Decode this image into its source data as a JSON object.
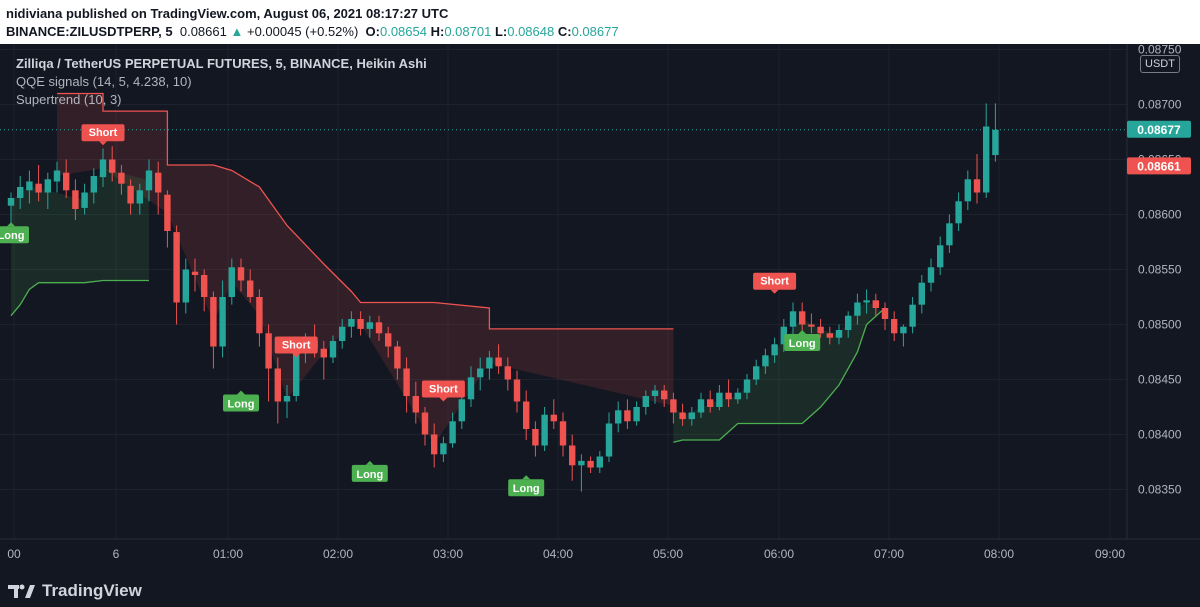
{
  "header": {
    "publisher_line": "nidiviana published on TradingView.com, August 06, 2021 08:17:27 UTC",
    "symbol": "BINANCE:ZILUSDTPERP, 5",
    "price": "0.08661",
    "change": "+0.00045 (+0.52%)",
    "ohlc": {
      "o_label": "O:",
      "o": "0.08654",
      "h_label": "H:",
      "h": "0.08701",
      "l_label": "L:",
      "l": "0.08648",
      "c_label": "C:",
      "c": "0.08677"
    }
  },
  "legend": {
    "title": "Zilliqa / TetherUS PERPETUAL FUTURES, 5, BINANCE, Heikin Ashi",
    "qqe": "QQE signals (14, 5, 4.238, 10)",
    "supertrend": "Supertrend (10, 3)"
  },
  "currency_button": "USDT",
  "brand": "TradingView",
  "colors": {
    "up": "#26a69a",
    "down": "#ef5350",
    "signal_long": "#4caf50",
    "signal_short": "#ef5350",
    "background": "#131722"
  },
  "chart_data": {
    "type": "candlestick",
    "price_axis": {
      "ticks": [
        "0.08750",
        "0.08700",
        "0.08650",
        "0.08600",
        "0.08550",
        "0.08500",
        "0.08450",
        "0.08400",
        "0.08350"
      ],
      "range": [
        0.08305,
        0.08755
      ]
    },
    "time_axis": {
      "ticks": [
        "00",
        "6",
        "01:00",
        "02:00",
        "03:00",
        "04:00",
        "05:00",
        "06:00",
        "07:00",
        "08:00",
        "09:00"
      ]
    },
    "last_price_labels": [
      {
        "value": "0.08677",
        "color": "#26a69a"
      },
      {
        "value": "0.08661",
        "color": "#ef5350"
      }
    ],
    "candles": [
      [
        0.08608,
        0.0862,
        0.0859,
        0.08615
      ],
      [
        0.08615,
        0.08635,
        0.08605,
        0.08625
      ],
      [
        0.08622,
        0.0864,
        0.0861,
        0.0863
      ],
      [
        0.08628,
        0.08645,
        0.08612,
        0.0862
      ],
      [
        0.0862,
        0.08638,
        0.08605,
        0.08632
      ],
      [
        0.0863,
        0.08648,
        0.0862,
        0.0864
      ],
      [
        0.08638,
        0.0865,
        0.08615,
        0.08622
      ],
      [
        0.08622,
        0.08632,
        0.08595,
        0.08605
      ],
      [
        0.08606,
        0.08628,
        0.086,
        0.0862
      ],
      [
        0.0862,
        0.08642,
        0.0861,
        0.08635
      ],
      [
        0.08634,
        0.0866,
        0.08625,
        0.0865
      ],
      [
        0.0865,
        0.08662,
        0.0863,
        0.08638
      ],
      [
        0.08638,
        0.08645,
        0.08618,
        0.08628
      ],
      [
        0.08626,
        0.08632,
        0.086,
        0.0861
      ],
      [
        0.0861,
        0.08628,
        0.086,
        0.08622
      ],
      [
        0.08622,
        0.0865,
        0.08612,
        0.0864
      ],
      [
        0.08638,
        0.08648,
        0.086,
        0.0862
      ],
      [
        0.08618,
        0.08622,
        0.0857,
        0.08585
      ],
      [
        0.08584,
        0.0859,
        0.085,
        0.0852
      ],
      [
        0.0852,
        0.0856,
        0.0851,
        0.0855
      ],
      [
        0.08548,
        0.0856,
        0.0853,
        0.08545
      ],
      [
        0.08545,
        0.0855,
        0.08512,
        0.08525
      ],
      [
        0.08525,
        0.0853,
        0.0846,
        0.0848
      ],
      [
        0.0848,
        0.0854,
        0.0847,
        0.08525
      ],
      [
        0.08525,
        0.0856,
        0.08518,
        0.08552
      ],
      [
        0.08552,
        0.0856,
        0.0853,
        0.0854
      ],
      [
        0.0854,
        0.0855,
        0.0852,
        0.08525
      ],
      [
        0.08525,
        0.08532,
        0.0848,
        0.08492
      ],
      [
        0.08492,
        0.085,
        0.0843,
        0.0846
      ],
      [
        0.0846,
        0.0847,
        0.0841,
        0.0843
      ],
      [
        0.0843,
        0.08445,
        0.08415,
        0.08435
      ],
      [
        0.08435,
        0.0848,
        0.0843,
        0.08475
      ],
      [
        0.08475,
        0.08492,
        0.08465,
        0.08485
      ],
      [
        0.08485,
        0.085,
        0.0847,
        0.08478
      ],
      [
        0.08478,
        0.08485,
        0.0845,
        0.0847
      ],
      [
        0.0847,
        0.0849,
        0.08465,
        0.08485
      ],
      [
        0.08485,
        0.08505,
        0.08478,
        0.08498
      ],
      [
        0.08498,
        0.08512,
        0.08488,
        0.08505
      ],
      [
        0.08505,
        0.08512,
        0.0849,
        0.08496
      ],
      [
        0.08496,
        0.08508,
        0.08488,
        0.08502
      ],
      [
        0.08502,
        0.08508,
        0.08485,
        0.08492
      ],
      [
        0.08492,
        0.08498,
        0.0847,
        0.0848
      ],
      [
        0.0848,
        0.08485,
        0.0845,
        0.0846
      ],
      [
        0.0846,
        0.0847,
        0.0842,
        0.08435
      ],
      [
        0.08435,
        0.08448,
        0.0841,
        0.0842
      ],
      [
        0.0842,
        0.08425,
        0.0839,
        0.084
      ],
      [
        0.084,
        0.0841,
        0.0837,
        0.08382
      ],
      [
        0.08382,
        0.08398,
        0.08375,
        0.08392
      ],
      [
        0.08392,
        0.0842,
        0.08388,
        0.08412
      ],
      [
        0.08412,
        0.0844,
        0.08405,
        0.08432
      ],
      [
        0.08432,
        0.08462,
        0.08425,
        0.08452
      ],
      [
        0.08452,
        0.0847,
        0.0844,
        0.0846
      ],
      [
        0.0846,
        0.08476,
        0.0845,
        0.0847
      ],
      [
        0.0847,
        0.08482,
        0.08455,
        0.08462
      ],
      [
        0.08462,
        0.0847,
        0.0844,
        0.0845
      ],
      [
        0.0845,
        0.08458,
        0.0842,
        0.0843
      ],
      [
        0.0843,
        0.0844,
        0.08395,
        0.08405
      ],
      [
        0.08405,
        0.08412,
        0.0838,
        0.0839
      ],
      [
        0.0839,
        0.08425,
        0.08385,
        0.08418
      ],
      [
        0.08418,
        0.08432,
        0.08405,
        0.08412
      ],
      [
        0.08412,
        0.0842,
        0.0838,
        0.0839
      ],
      [
        0.0839,
        0.084,
        0.08358,
        0.08372
      ],
      [
        0.08372,
        0.08382,
        0.08348,
        0.08376
      ],
      [
        0.08376,
        0.0838,
        0.08365,
        0.0837
      ],
      [
        0.0837,
        0.08385,
        0.08365,
        0.0838
      ],
      [
        0.0838,
        0.0842,
        0.08375,
        0.0841
      ],
      [
        0.0841,
        0.0843,
        0.08402,
        0.08422
      ],
      [
        0.08422,
        0.08432,
        0.08405,
        0.08412
      ],
      [
        0.08412,
        0.0843,
        0.08408,
        0.08425
      ],
      [
        0.08425,
        0.0844,
        0.08418,
        0.08435
      ],
      [
        0.08435,
        0.08445,
        0.08428,
        0.0844
      ],
      [
        0.0844,
        0.08445,
        0.08425,
        0.08432
      ],
      [
        0.08432,
        0.08438,
        0.0841,
        0.0842
      ],
      [
        0.0842,
        0.08428,
        0.08408,
        0.08414
      ],
      [
        0.08414,
        0.08425,
        0.08408,
        0.0842
      ],
      [
        0.0842,
        0.08438,
        0.08415,
        0.08432
      ],
      [
        0.08432,
        0.0844,
        0.0842,
        0.08425
      ],
      [
        0.08425,
        0.08445,
        0.08422,
        0.08438
      ],
      [
        0.08438,
        0.0845,
        0.08425,
        0.08432
      ],
      [
        0.08432,
        0.08442,
        0.08428,
        0.08438
      ],
      [
        0.08438,
        0.08455,
        0.08432,
        0.0845
      ],
      [
        0.0845,
        0.08468,
        0.08445,
        0.08462
      ],
      [
        0.08462,
        0.08478,
        0.08455,
        0.08472
      ],
      [
        0.08472,
        0.08488,
        0.08465,
        0.08482
      ],
      [
        0.08482,
        0.08505,
        0.08475,
        0.08498
      ],
      [
        0.08498,
        0.0852,
        0.0849,
        0.08512
      ],
      [
        0.08512,
        0.0852,
        0.0849,
        0.085
      ],
      [
        0.085,
        0.0851,
        0.08492,
        0.08498
      ],
      [
        0.08498,
        0.08505,
        0.08488,
        0.08492
      ],
      [
        0.08492,
        0.08498,
        0.08482,
        0.08488
      ],
      [
        0.08488,
        0.085,
        0.08482,
        0.08495
      ],
      [
        0.08495,
        0.08512,
        0.08488,
        0.08508
      ],
      [
        0.08508,
        0.08528,
        0.085,
        0.0852
      ],
      [
        0.0852,
        0.08532,
        0.0851,
        0.08522
      ],
      [
        0.08522,
        0.08528,
        0.08508,
        0.08515
      ],
      [
        0.08515,
        0.0852,
        0.08495,
        0.08505
      ],
      [
        0.08505,
        0.08512,
        0.08485,
        0.08492
      ],
      [
        0.08492,
        0.085,
        0.0848,
        0.08498
      ],
      [
        0.08498,
        0.08525,
        0.08492,
        0.08518
      ],
      [
        0.08518,
        0.08545,
        0.0851,
        0.08538
      ],
      [
        0.08538,
        0.0856,
        0.0853,
        0.08552
      ],
      [
        0.08552,
        0.0858,
        0.08545,
        0.08572
      ],
      [
        0.08572,
        0.086,
        0.08565,
        0.08592
      ],
      [
        0.08592,
        0.0862,
        0.08585,
        0.08612
      ],
      [
        0.08612,
        0.0864,
        0.08604,
        0.08632
      ],
      [
        0.08632,
        0.08655,
        0.0861,
        0.0862
      ],
      [
        0.0862,
        0.08701,
        0.08615,
        0.0868
      ],
      [
        0.08654,
        0.08701,
        0.08648,
        0.08677
      ]
    ],
    "supertrend_short": [
      [
        5,
        0.0871
      ],
      [
        10,
        0.0871
      ],
      [
        10,
        0.08694
      ],
      [
        17,
        0.08694
      ],
      [
        17,
        0.08645
      ],
      [
        22,
        0.08645
      ],
      [
        24,
        0.0864
      ],
      [
        27,
        0.08625
      ],
      [
        30,
        0.0859
      ],
      [
        34,
        0.08555
      ],
      [
        37,
        0.0853
      ],
      [
        38,
        0.0852
      ],
      [
        46,
        0.0852
      ],
      [
        52,
        0.08515
      ],
      [
        52,
        0.08496
      ],
      [
        72,
        0.08496
      ]
    ],
    "supertrend_long_1": [
      [
        0,
        0.08508
      ],
      [
        1,
        0.08518
      ],
      [
        2,
        0.08532
      ],
      [
        3,
        0.08538
      ],
      [
        8,
        0.08538
      ],
      [
        10,
        0.0854
      ],
      [
        15,
        0.0854
      ]
    ],
    "supertrend_long_2": [
      [
        72,
        0.08393
      ],
      [
        73,
        0.08395
      ],
      [
        77,
        0.08395
      ],
      [
        79,
        0.0841
      ],
      [
        86,
        0.0841
      ],
      [
        88,
        0.08425
      ],
      [
        90,
        0.08445
      ],
      [
        92,
        0.08475
      ],
      [
        93,
        0.085
      ],
      [
        95,
        0.08515
      ]
    ],
    "signals": [
      {
        "label": "Short",
        "type": "short",
        "index": 10,
        "price": 0.08663
      },
      {
        "label": "Long",
        "type": "long",
        "index": 0,
        "price": 0.08593
      },
      {
        "label": "Short",
        "type": "short",
        "index": 31,
        "price": 0.0847
      },
      {
        "label": "Long",
        "type": "long",
        "index": 25,
        "price": 0.0844
      },
      {
        "label": "Short",
        "type": "short",
        "index": 47,
        "price": 0.0843
      },
      {
        "label": "Long",
        "type": "long",
        "index": 39,
        "price": 0.08376
      },
      {
        "label": "Short",
        "type": "short",
        "index": 83,
        "price": 0.08528
      },
      {
        "label": "Long",
        "type": "long",
        "index": 56,
        "price": 0.08363
      },
      {
        "label": "Long",
        "type": "long",
        "index": 86,
        "price": 0.08495
      }
    ]
  }
}
